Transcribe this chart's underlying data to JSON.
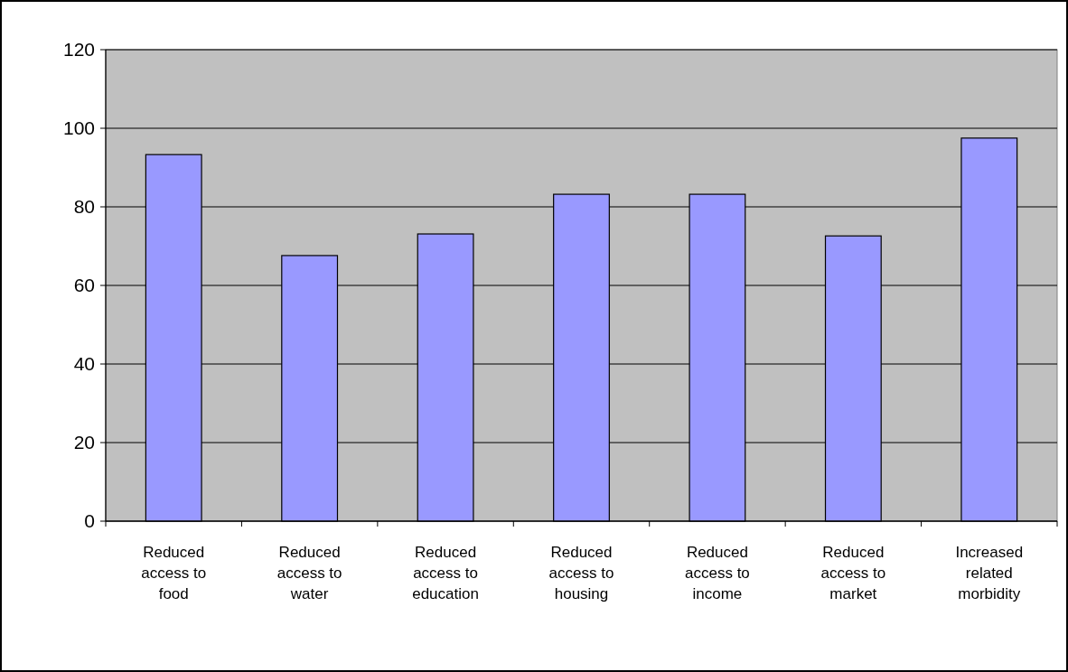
{
  "chart_data": {
    "type": "bar",
    "categories": [
      "Reduced access to food",
      "Reduced access to water",
      "Reduced access to education",
      "Reduced access to housing",
      "Reduced access to income",
      "Reduced access to market",
      "Increased related morbidity"
    ],
    "values": [
      93.3,
      67.6,
      73.1,
      83.2,
      83.2,
      72.6,
      97.5
    ],
    "color": "#9999ff",
    "ylim": [
      0,
      120
    ],
    "yticks": [
      0,
      20,
      40,
      60,
      80,
      100,
      120
    ],
    "grid": "y"
  }
}
